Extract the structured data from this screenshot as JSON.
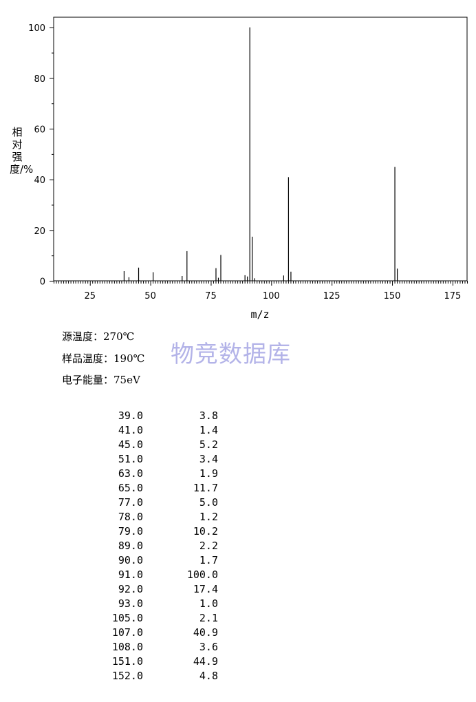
{
  "chart_data": {
    "type": "bar",
    "xlabel": "m/z",
    "ylabel": "相对强度/%",
    "xlim": [
      10,
      181
    ],
    "ylim": [
      0,
      104
    ],
    "x_ticks": [
      25,
      50,
      75,
      100,
      125,
      150,
      175
    ],
    "y_ticks": [
      0,
      20,
      40,
      60,
      80,
      100
    ],
    "grid": false,
    "series": [
      {
        "x": [
          39,
          41,
          45,
          51,
          63,
          65,
          77,
          78,
          79,
          89,
          90,
          91,
          92,
          93,
          105,
          107,
          108,
          151,
          152
        ],
        "values": [
          3.8,
          1.4,
          5.2,
          3.4,
          1.9,
          11.7,
          5.0,
          1.2,
          10.2,
          2.2,
          1.7,
          100.0,
          17.4,
          1.0,
          2.1,
          40.9,
          3.6,
          44.9,
          4.8
        ]
      }
    ]
  },
  "conditions": {
    "source_temp": "源温度：270℃",
    "sample_temp": "样品温度：190℃",
    "electron_energy": "电子能量：75eV"
  },
  "watermark": "物竞数据库",
  "peak_table": [
    {
      "mz": "39.0",
      "intensity": "3.8"
    },
    {
      "mz": "41.0",
      "intensity": "1.4"
    },
    {
      "mz": "45.0",
      "intensity": "5.2"
    },
    {
      "mz": "51.0",
      "intensity": "3.4"
    },
    {
      "mz": "63.0",
      "intensity": "1.9"
    },
    {
      "mz": "65.0",
      "intensity": "11.7"
    },
    {
      "mz": "77.0",
      "intensity": "5.0"
    },
    {
      "mz": "78.0",
      "intensity": "1.2"
    },
    {
      "mz": "79.0",
      "intensity": "10.2"
    },
    {
      "mz": "89.0",
      "intensity": "2.2"
    },
    {
      "mz": "90.0",
      "intensity": "1.7"
    },
    {
      "mz": "91.0",
      "intensity": "100.0"
    },
    {
      "mz": "92.0",
      "intensity": "17.4"
    },
    {
      "mz": "93.0",
      "intensity": "1.0"
    },
    {
      "mz": "105.0",
      "intensity": "2.1"
    },
    {
      "mz": "107.0",
      "intensity": "40.9"
    },
    {
      "mz": "108.0",
      "intensity": "3.6"
    },
    {
      "mz": "151.0",
      "intensity": "44.9"
    },
    {
      "mz": "152.0",
      "intensity": "4.8"
    }
  ]
}
